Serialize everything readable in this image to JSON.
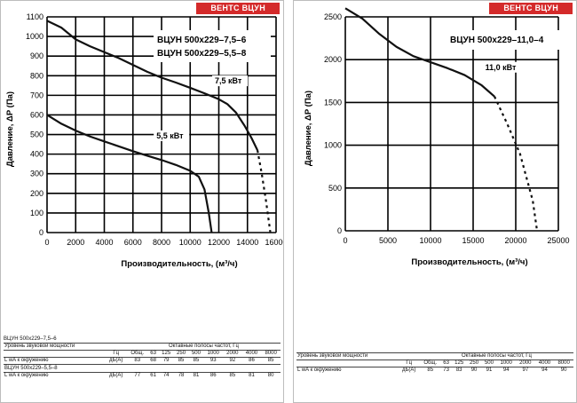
{
  "brand": "ВЕНТС ВЦУН",
  "chart_data": [
    {
      "type": "line",
      "legend": [
        "ВЦУН 500х229–7,5–6",
        "ВЦУН 500х229–5,5–8"
      ],
      "xlabel": "Производительность, (м³/ч)",
      "ylabel": "Давление, ΔP (Па)",
      "xlim": [
        0,
        16000
      ],
      "ylim": [
        0,
        1100
      ],
      "xticks": [
        0,
        2000,
        4000,
        6000,
        8000,
        10000,
        12000,
        14000,
        16000
      ],
      "yticks": [
        0,
        100,
        200,
        300,
        400,
        500,
        600,
        700,
        800,
        900,
        1000,
        1100
      ],
      "grid": true,
      "series": [
        {
          "name": "7,5 кВт",
          "x": [
            0,
            1000,
            2000,
            3000,
            4000,
            5000,
            6000,
            7000,
            8000,
            9000,
            10000,
            11000,
            12000,
            12600,
            13200,
            13800,
            14300,
            14700
          ],
          "y": [
            1080,
            1045,
            985,
            950,
            920,
            890,
            855,
            820,
            790,
            765,
            738,
            710,
            680,
            655,
            612,
            545,
            480,
            420
          ],
          "dashed_x": [
            14700,
            15000,
            15300,
            15600
          ],
          "dashed_y": [
            420,
            300,
            160,
            0
          ]
        },
        {
          "name": "5,5 кВт",
          "x": [
            0,
            1000,
            2000,
            3000,
            4000,
            5000,
            6000,
            7000,
            8000,
            9000,
            10000,
            10600,
            11000,
            11300,
            11500
          ],
          "y": [
            600,
            555,
            520,
            490,
            465,
            440,
            415,
            392,
            370,
            345,
            315,
            285,
            220,
            100,
            0
          ]
        }
      ]
    },
    {
      "type": "line",
      "legend": [
        "ВЦУН 500х229–11,0–4"
      ],
      "xlabel": "Производительность, (м³/ч)",
      "ylabel": "Давление, ΔP (Па)",
      "xlim": [
        0,
        25000
      ],
      "ylim": [
        0,
        2500
      ],
      "xticks": [
        0,
        5000,
        10000,
        15000,
        20000,
        25000
      ],
      "yticks": [
        0,
        500,
        1000,
        1500,
        2000,
        2500
      ],
      "grid": true,
      "series": [
        {
          "name": "11,0 кВт",
          "x": [
            0,
            2000,
            4000,
            6000,
            8000,
            10000,
            12000,
            14000,
            16000,
            17500
          ],
          "y": [
            2600,
            2480,
            2300,
            2150,
            2040,
            1970,
            1900,
            1820,
            1700,
            1570
          ],
          "dashed_x": [
            17500,
            19000,
            20500,
            22000,
            22500
          ],
          "dashed_y": [
            1570,
            1250,
            900,
            350,
            0
          ]
        }
      ]
    }
  ],
  "tables": [
    {
      "title": "ВЦУН 500х229–7,5–6",
      "h1": "Уровень звуковой мощности",
      "h2": "Октавные полосы частот, Гц",
      "h3": "Гц",
      "cols": [
        "Общ.",
        "63",
        "125",
        "250",
        "500",
        "1000",
        "2000",
        "4000",
        "8000"
      ],
      "row_label": "L wA к окружению",
      "unit": "дБ(А)",
      "values": [
        "83",
        "68",
        "79",
        "85",
        "85",
        "93",
        "92",
        "86",
        "85"
      ]
    },
    {
      "title": "ВЦУН 500х229–5,5–8",
      "row_label": "L wA к окружению",
      "unit": "дБ(А)",
      "values": [
        "77",
        "61",
        "74",
        "78",
        "81",
        "86",
        "85",
        "81",
        "80"
      ]
    },
    {
      "h1": "Уровень звуковой мощности",
      "h2": "Октавные полосы частот, Гц",
      "h3": "Гц",
      "cols": [
        "Общ.",
        "63",
        "125",
        "250",
        "500",
        "1000",
        "2000",
        "4000",
        "8000"
      ],
      "row_label": "L wA к окружению",
      "unit": "дБ(А)",
      "values": [
        "85",
        "73",
        "83",
        "90",
        "91",
        "94",
        "97",
        "94",
        "90"
      ]
    }
  ]
}
